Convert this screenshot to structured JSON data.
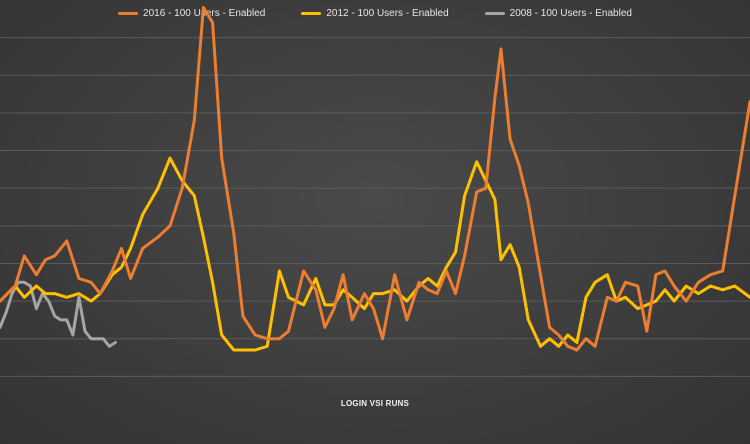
{
  "chart_data": {
    "type": "line",
    "title": "",
    "xlabel": "LOGIN VSI RUNS",
    "ylabel": "",
    "grid": true,
    "legend_position": "top-center",
    "ylim": [
      0,
      11
    ],
    "xlim": [
      0,
      247
    ],
    "series": [
      {
        "name": "2016 - 100 Users - Enabled",
        "color": "#ED7D31",
        "x": [
          0,
          5,
          8,
          12,
          15,
          18,
          22,
          26,
          30,
          33,
          37,
          40,
          43,
          47,
          52,
          56,
          60,
          64,
          67,
          70,
          73,
          77,
          80,
          84,
          88,
          92,
          95,
          100,
          104,
          107,
          110,
          113,
          116,
          120,
          123,
          126,
          130,
          134,
          138,
          141,
          144,
          147,
          150,
          153,
          157,
          160,
          163,
          165,
          168,
          171,
          174,
          178,
          181,
          184,
          187,
          190,
          193,
          196,
          200,
          203,
          206,
          210,
          213,
          216,
          219,
          222,
          226,
          230,
          234,
          238,
          242,
          247
        ],
        "y": [
          3,
          3.4,
          4.2,
          3.7,
          4.1,
          4.2,
          4.6,
          3.6,
          3.5,
          3.2,
          3.8,
          4.4,
          3.6,
          4.4,
          4.7,
          5,
          6,
          7.8,
          10.8,
          10.4,
          6.8,
          4.8,
          2.6,
          2.1,
          2,
          2,
          2.2,
          3.8,
          3.3,
          2.3,
          2.8,
          3.7,
          2.5,
          3.2,
          2.8,
          2,
          3.7,
          2.5,
          3.5,
          3.3,
          3.2,
          3.8,
          3.2,
          4.2,
          5.9,
          6,
          8.4,
          9.7,
          7.3,
          6.6,
          5.6,
          3.7,
          2.3,
          2.1,
          1.8,
          1.7,
          2,
          1.8,
          3.1,
          3,
          3.5,
          3.4,
          2.2,
          3.7,
          3.8,
          3.4,
          3,
          3.5,
          3.7,
          3.8,
          5.8,
          8.3
        ]
      },
      {
        "name": "2012 - 100 Users - Enabled",
        "color": "#FFC000",
        "x": [
          0,
          5,
          8,
          12,
          15,
          18,
          22,
          26,
          30,
          33,
          37,
          40,
          43,
          47,
          52,
          56,
          60,
          64,
          67,
          70,
          73,
          77,
          80,
          84,
          88,
          92,
          95,
          100,
          104,
          107,
          110,
          113,
          116,
          120,
          123,
          126,
          130,
          134,
          138,
          141,
          144,
          147,
          150,
          153,
          157,
          160,
          163,
          165,
          168,
          171,
          174,
          178,
          181,
          184,
          187,
          190,
          193,
          196,
          200,
          203,
          206,
          210,
          213,
          216,
          219,
          222,
          226,
          230,
          234,
          238,
          242,
          247
        ],
        "y": [
          3,
          3.4,
          3.1,
          3.4,
          3.2,
          3.2,
          3.1,
          3.2,
          3,
          3.2,
          3.7,
          3.9,
          4.4,
          5.3,
          6,
          6.8,
          6.2,
          5.8,
          4.7,
          3.5,
          2.1,
          1.7,
          1.7,
          1.7,
          1.8,
          3.8,
          3.1,
          2.9,
          3.6,
          2.9,
          2.9,
          3.3,
          3.1,
          2.8,
          3.2,
          3.2,
          3.3,
          3,
          3.4,
          3.6,
          3.4,
          3.9,
          4.3,
          5.8,
          6.7,
          6.2,
          5.7,
          4.1,
          4.5,
          3.9,
          2.5,
          1.8,
          2,
          1.8,
          2.1,
          1.9,
          3.1,
          3.5,
          3.7,
          3,
          3.1,
          2.8,
          2.9,
          3,
          3.3,
          3,
          3.4,
          3.2,
          3.4,
          3.3,
          3.4,
          3.1
        ]
      },
      {
        "name": "2008 - 100 Users - Enabled",
        "color": "#A5A5A5",
        "x": [
          0,
          2,
          4,
          6,
          8,
          10,
          12,
          14,
          16,
          18,
          20,
          22,
          24,
          26,
          28,
          30,
          32,
          34,
          36,
          38
        ],
        "y": [
          2.3,
          2.7,
          3.2,
          3.5,
          3.5,
          3.4,
          2.8,
          3.2,
          3.0,
          2.6,
          2.5,
          2.5,
          2.1,
          3.1,
          2.2,
          2.0,
          2.0,
          2.0,
          1.8,
          1.9
        ]
      }
    ]
  }
}
